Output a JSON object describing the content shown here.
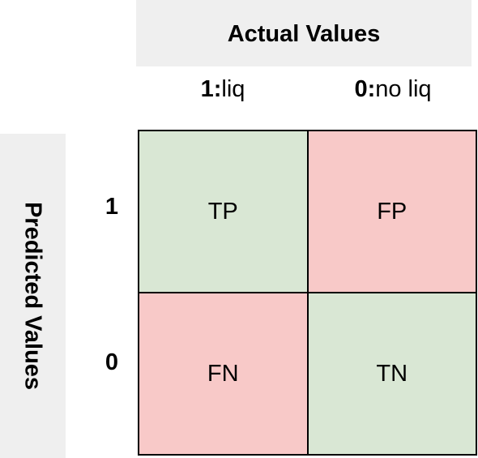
{
  "actual_header": "Actual Values",
  "predicted_header": "Predicted Values",
  "columns": [
    {
      "key": "1:",
      "name": " liq"
    },
    {
      "key": "0:",
      "name": " no liq"
    }
  ],
  "rows": [
    "1",
    "0"
  ],
  "cells": {
    "top_left": "TP",
    "top_right": "FP",
    "bottom_left": "FN",
    "bottom_right": "TN"
  },
  "colors": {
    "correct": "#d9e7d4",
    "incorrect": "#f8c9c8",
    "header_background": "#efefef",
    "border": "#000000"
  }
}
